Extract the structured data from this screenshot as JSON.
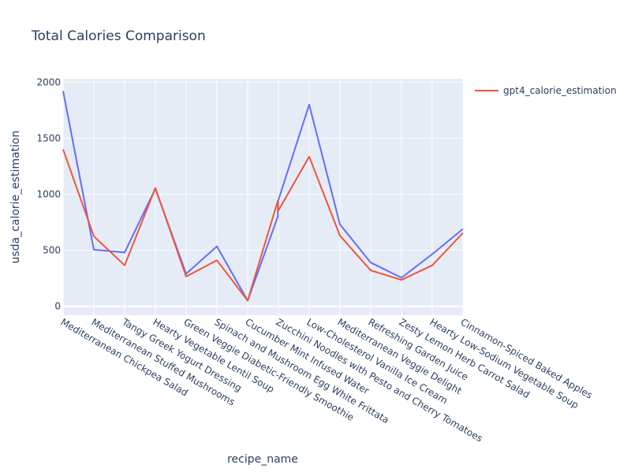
{
  "chart_data": {
    "type": "line",
    "title": "Total Calories Comparison",
    "xlabel": "recipe_name",
    "ylabel": "usda_calorie_estimation",
    "categories": [
      "Mediterranean Chickpea Salad",
      "Mediterranean Stuffed Mushrooms",
      "Tangy Greek Yogurt Dressing",
      "Hearty Vegetable Lentil Soup",
      "Green Veggie Diabetic-Friendly Smoothie",
      "Spinach and Mushroom Egg White Frittata",
      "Cucumber Mint Infused Water",
      "Zucchini Noodles with Pesto and Cherry Tomatoes",
      "Low-Cholesterol Vanilla Ice Cream",
      "Mediterranean Veggie Delight",
      "Refreshing Garden Juice",
      "Zesty Lemon Herb Carrot Salad",
      "Hearty Low-Sodium Vegetable Soup",
      "Cinnamon-Spiced Baked Apples"
    ],
    "series": [
      {
        "values": [
          [
            0,
            1920
          ],
          [
            1,
            505
          ],
          [
            2,
            480
          ],
          [
            3,
            1050
          ],
          [
            4,
            290
          ],
          [
            5,
            535
          ],
          [
            6,
            50
          ],
          [
            6.98,
            800
          ],
          [
            6.99,
            940
          ],
          [
            8,
            1800
          ],
          [
            9,
            730
          ],
          [
            10,
            390
          ],
          [
            11,
            255
          ],
          [
            12,
            465
          ],
          [
            13,
            690
          ]
        ],
        "color": "#636efa"
      },
      {
        "name": "gpt4_calorie_estimation",
        "values": [
          [
            0,
            1400
          ],
          [
            1,
            625
          ],
          [
            2,
            365
          ],
          [
            3,
            1055
          ],
          [
            4,
            265
          ],
          [
            5,
            410
          ],
          [
            6,
            50
          ],
          [
            6.98,
            940
          ],
          [
            6.99,
            850
          ],
          [
            8,
            1335
          ],
          [
            9,
            630
          ],
          [
            10,
            320
          ],
          [
            11,
            235
          ],
          [
            12,
            365
          ],
          [
            13,
            655
          ]
        ],
        "color": "#EF553B"
      }
    ],
    "yticks": [
      0,
      500,
      1000,
      1500,
      2000
    ],
    "ylim": [
      -80,
      2030
    ],
    "xlim": [
      0,
      13
    ],
    "grid": true,
    "legend": "top-right",
    "colors": {
      "plot_bg": "#E5ECF6",
      "grid": "#ffffff",
      "text": "#2a3f5f"
    }
  }
}
